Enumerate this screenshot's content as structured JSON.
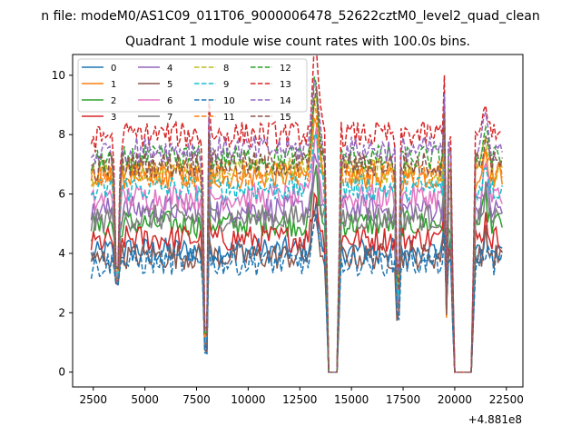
{
  "chart_data": {
    "type": "line",
    "suptitle": "n file: modeM0/AS1C09_011T06_9000006478_52622cztM0_level2_quad_clean",
    "title": "Quadrant 1 module wise count rates with 100.0s bins.",
    "xlabel": "",
    "ylabel": "",
    "x_offset_label": "+4.881e8",
    "xlim": [
      1500,
      23300
    ],
    "ylim": [
      -0.5,
      10.7
    ],
    "xticks": [
      2500,
      5000,
      7500,
      10000,
      12500,
      15000,
      17500,
      20000,
      22500
    ],
    "yticks": [
      0,
      2,
      4,
      6,
      8,
      10
    ],
    "legend_position": "upper-left",
    "legend_columns": 4,
    "x_start": 2400,
    "x_end": 22300,
    "bin": 100,
    "gaps": [
      {
        "start": 7950,
        "end": 8050,
        "kind": "dip"
      },
      {
        "start": 13900,
        "end": 14300,
        "kind": "zero"
      },
      {
        "start": 17250,
        "end": 17250,
        "kind": "dip"
      },
      {
        "start": 19550,
        "end": 19550,
        "kind": "dip"
      },
      {
        "start": 20100,
        "end": 20800,
        "kind": "zero"
      }
    ],
    "series": [
      {
        "name": "0",
        "color": "#1f77b4",
        "dash": "solid",
        "baseline": 4.1
      },
      {
        "name": "1",
        "color": "#ff7f0e",
        "dash": "solid",
        "baseline": 6.6
      },
      {
        "name": "2",
        "color": "#2ca02c",
        "dash": "solid",
        "baseline": 5.0
      },
      {
        "name": "3",
        "color": "#d62728",
        "dash": "solid",
        "baseline": 4.5
      },
      {
        "name": "4",
        "color": "#9467bd",
        "dash": "solid",
        "baseline": 5.5
      },
      {
        "name": "5",
        "color": "#8c564b",
        "dash": "solid",
        "baseline": 3.9
      },
      {
        "name": "6",
        "color": "#e377c2",
        "dash": "solid",
        "baseline": 5.9
      },
      {
        "name": "7",
        "color": "#7f7f7f",
        "dash": "solid",
        "baseline": 5.2
      },
      {
        "name": "8",
        "color": "#bcbd22",
        "dash": "dashed",
        "baseline": 6.8
      },
      {
        "name": "9",
        "color": "#17becf",
        "dash": "dashed",
        "baseline": 6.2
      },
      {
        "name": "10",
        "color": "#1f77b4",
        "dash": "dashed",
        "baseline": 3.7
      },
      {
        "name": "11",
        "color": "#ff7f0e",
        "dash": "dashed",
        "baseline": 6.7
      },
      {
        "name": "12",
        "color": "#2ca02c",
        "dash": "dashed",
        "baseline": 7.2
      },
      {
        "name": "13",
        "color": "#d62728",
        "dash": "dashed",
        "baseline": 8.0
      },
      {
        "name": "14",
        "color": "#9467bd",
        "dash": "dashed",
        "baseline": 7.5
      },
      {
        "name": "15",
        "color": "#8c564b",
        "dash": "dashed",
        "baseline": 7.0
      }
    ]
  }
}
